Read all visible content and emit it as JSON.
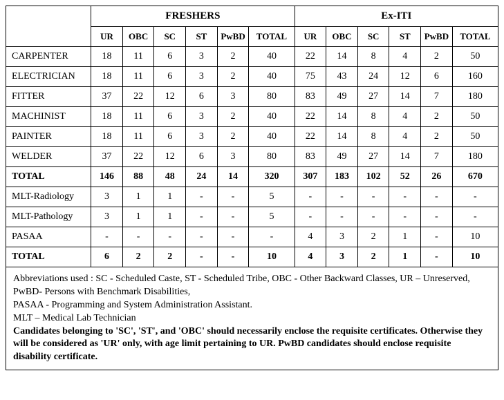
{
  "groupHeaders": {
    "freshers": "FRESHERS",
    "exiti": "Ex-ITI"
  },
  "subHeaders": [
    "UR",
    "OBC",
    "SC",
    "ST",
    "PwBD",
    "TOTAL",
    "UR",
    "OBC",
    "SC",
    "ST",
    "PwBD",
    "TOTAL"
  ],
  "rows": [
    {
      "label": "CARPENTER",
      "bold": false,
      "cells": [
        "18",
        "11",
        "6",
        "3",
        "2",
        "40",
        "22",
        "14",
        "8",
        "4",
        "2",
        "50"
      ]
    },
    {
      "label": "ELECTRICIAN",
      "bold": false,
      "cells": [
        "18",
        "11",
        "6",
        "3",
        "2",
        "40",
        "75",
        "43",
        "24",
        "12",
        "6",
        "160"
      ]
    },
    {
      "label": "FITTER",
      "bold": false,
      "cells": [
        "37",
        "22",
        "12",
        "6",
        "3",
        "80",
        "83",
        "49",
        "27",
        "14",
        "7",
        "180"
      ]
    },
    {
      "label": "MACHINIST",
      "bold": false,
      "cells": [
        "18",
        "11",
        "6",
        "3",
        "2",
        "40",
        "22",
        "14",
        "8",
        "4",
        "2",
        "50"
      ]
    },
    {
      "label": "PAINTER",
      "bold": false,
      "cells": [
        "18",
        "11",
        "6",
        "3",
        "2",
        "40",
        "22",
        "14",
        "8",
        "4",
        "2",
        "50"
      ]
    },
    {
      "label": "WELDER",
      "bold": false,
      "cells": [
        "37",
        "22",
        "12",
        "6",
        "3",
        "80",
        "83",
        "49",
        "27",
        "14",
        "7",
        "180"
      ]
    },
    {
      "label": "TOTAL",
      "bold": true,
      "cells": [
        "146",
        "88",
        "48",
        "24",
        "14",
        "320",
        "307",
        "183",
        "102",
        "52",
        "26",
        "670"
      ]
    },
    {
      "label": "MLT-Radiology",
      "bold": false,
      "cells": [
        "3",
        "1",
        "1",
        "-",
        "-",
        "5",
        "-",
        "-",
        "-",
        "-",
        "-",
        "-"
      ]
    },
    {
      "label": "MLT-Pathology",
      "bold": false,
      "cells": [
        "3",
        "1",
        "1",
        "-",
        "-",
        "5",
        "-",
        "-",
        "-",
        "-",
        "-",
        "-"
      ]
    },
    {
      "label": "PASAA",
      "bold": false,
      "cells": [
        "-",
        "-",
        "-",
        "-",
        "-",
        "-",
        "4",
        "3",
        "2",
        "1",
        "-",
        "10"
      ]
    },
    {
      "label": "TOTAL",
      "bold": true,
      "cells": [
        "6",
        "2",
        "2",
        "-",
        "-",
        "10",
        "4",
        "3",
        "2",
        "1",
        "-",
        "10"
      ]
    }
  ],
  "notes": {
    "line1": "Abbreviations used : SC - Scheduled Caste, ST - Scheduled Tribe, OBC - Other Backward Classes, UR – Unreserved, PwBD- Persons with Benchmark Disabilities,",
    "line2": "PASAA - Programming and System Administration Assistant.",
    "line3": "MLT – Medical Lab Technician",
    "line4": "Candidates belonging to 'SC', 'ST', and 'OBC' should necessarily enclose the requisite certificates.  Otherwise they will be considered as 'UR' only, with age limit pertaining to UR. PwBD candidates should enclose requisite disability certificate."
  }
}
